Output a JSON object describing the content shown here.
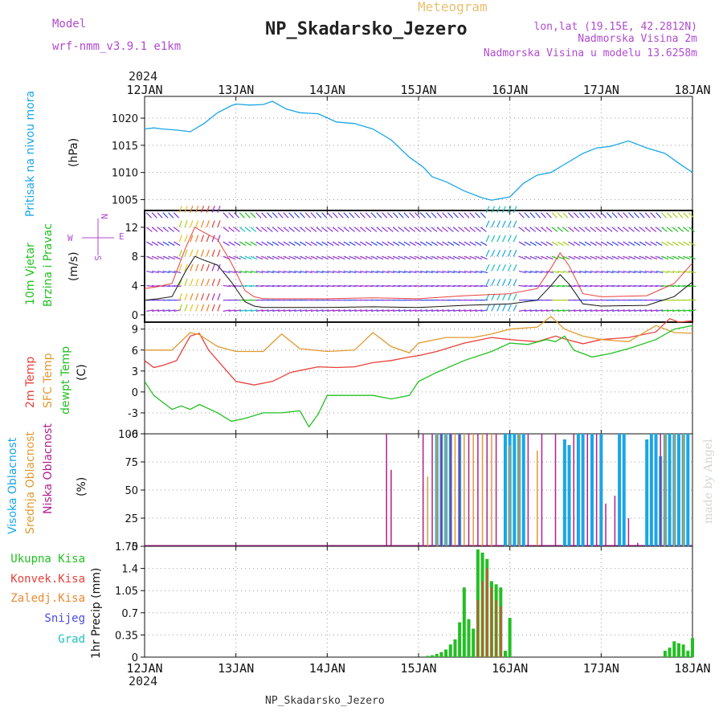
{
  "header": {
    "meteogram": "Meteogram",
    "station": "NP_Skadarsko_Jezero",
    "model_label": "Model",
    "model_value": "wrf-nmm_v3.9.1  e1km",
    "lonlat": "lon,lat (19.15E, 42.2812N)",
    "elevation": "Nadmorska Visina 2m",
    "model_elevation": "Nadmorska Visina u modelu 13.6258m",
    "footer_station": "NP_Skadarsko_Jezero",
    "credit": "made by Angel",
    "year_top": "2024",
    "year_bottom": "2024"
  },
  "colors": {
    "pressure": "#1aa6e6",
    "temp2m": "#e8403a",
    "sfc": "#e09a30",
    "dewpt": "#22c022",
    "high_cloud": "#1aa6e6",
    "mid_cloud": "#e09a30",
    "low_cloud": "#b0208f",
    "precip_total": "#22c022",
    "precip_conv": "#e8403a",
    "purple_label": "#b04ad0",
    "grid": "#999999"
  },
  "chart_data": [
    {
      "type": "line",
      "panel": "pressure",
      "ylabel": "(hPa)",
      "series_label": "Pritisak na nivou mora",
      "x_tick_labels": [
        "12JAN",
        "13JAN",
        "14JAN",
        "15JAN",
        "16JAN",
        "17JAN",
        "18JAN"
      ],
      "ylim": [
        1003,
        1024
      ],
      "yticks": [
        1005,
        1010,
        1015,
        1020
      ],
      "x_days": [
        0,
        0.1,
        0.2,
        0.35,
        0.5,
        0.65,
        0.8,
        0.95,
        1.0,
        1.15,
        1.3,
        1.4,
        1.55,
        1.7,
        1.9,
        2.1,
        2.3,
        2.5,
        2.7,
        2.9,
        3.05,
        3.15,
        3.3,
        3.5,
        3.7,
        3.8,
        4.0,
        4.15,
        4.3,
        4.45,
        4.6,
        4.8,
        4.95,
        5.1,
        5.3,
        5.5,
        5.7,
        5.85,
        6.0
      ],
      "values": [
        1018,
        1018.2,
        1018,
        1017.8,
        1017.5,
        1019,
        1021,
        1022.3,
        1022.6,
        1022.4,
        1022.5,
        1023.1,
        1021.7,
        1021.0,
        1020.8,
        1019.3,
        1019.0,
        1018.0,
        1016.0,
        1012.8,
        1011.0,
        1009.2,
        1008.3,
        1006.6,
        1005.3,
        1004.9,
        1005.5,
        1008.0,
        1009.5,
        1010.0,
        1011.5,
        1013.5,
        1014.5,
        1014.8,
        1015.8,
        1014.5,
        1013.5,
        1011.7,
        1010.0
      ]
    },
    {
      "type": "line",
      "panel": "wind",
      "ylabel": "(m/s)",
      "series_label": "10m Vjetar Brzina i Pravac",
      "compass": [
        "N",
        "E",
        "W",
        "S"
      ],
      "ylim": [
        -1,
        14.3
      ],
      "yticks": [
        0,
        4,
        8,
        12
      ],
      "x_days": [
        0,
        0.15,
        0.3,
        0.45,
        0.55,
        0.65,
        0.8,
        0.95,
        1.1,
        1.2,
        1.3,
        1.5,
        2.0,
        2.5,
        3.0,
        3.5,
        4.0,
        4.3,
        4.45,
        4.55,
        4.65,
        4.8,
        5.0,
        5.5,
        5.8,
        6.0
      ],
      "speed": [
        2,
        2.2,
        2.5,
        6,
        8,
        7.5,
        6.8,
        4.5,
        1.8,
        1.2,
        1.0,
        1.0,
        1.0,
        1.1,
        1.0,
        1.3,
        1.5,
        2.0,
        4.0,
        5.5,
        4.2,
        1.5,
        1.2,
        1.3,
        2.5,
        4.5
      ]
    },
    {
      "type": "line",
      "panel": "temperature",
      "ylabel": "(C)",
      "series": [
        {
          "name": "2m Temp",
          "key": "temp2m",
          "x": [
            0,
            0.1,
            0.2,
            0.35,
            0.5,
            0.6,
            0.7,
            0.9,
            1.0,
            1.2,
            1.4,
            1.6,
            1.9,
            2.1,
            2.3,
            2.5,
            2.7,
            2.9,
            3.0,
            3.2,
            3.5,
            3.8,
            4.0,
            4.3,
            4.5,
            4.6,
            4.8,
            5.0,
            5.3,
            5.6,
            5.75,
            5.85,
            6.0
          ],
          "values": [
            4.5,
            3.5,
            3.8,
            4.5,
            8.0,
            8.4,
            6.0,
            3.0,
            1.5,
            1.0,
            1.5,
            2.8,
            3.6,
            3.5,
            3.6,
            4.2,
            4.5,
            5.0,
            5.2,
            5.8,
            7.0,
            7.8,
            7.5,
            7.2,
            8.0,
            7.6,
            6.9,
            7.5,
            7.8,
            8.6,
            10.5,
            10.0,
            10.2
          ]
        },
        {
          "name": "SFC Temp",
          "key": "sfc",
          "x": [
            0,
            0.3,
            0.5,
            0.6,
            0.8,
            1.0,
            1.3,
            1.5,
            1.7,
            2.0,
            2.3,
            2.5,
            2.7,
            2.9,
            3.0,
            3.3,
            3.6,
            3.8,
            4.0,
            4.3,
            4.45,
            4.6,
            4.8,
            5.0,
            5.3,
            5.6,
            5.8,
            6.0
          ],
          "values": [
            6.0,
            6.0,
            8.5,
            8.2,
            6.5,
            5.8,
            5.8,
            8.3,
            6.2,
            5.8,
            6.0,
            8.5,
            6.5,
            5.6,
            7.0,
            7.8,
            7.8,
            8.3,
            9.0,
            9.3,
            10.8,
            9.0,
            8.0,
            7.5,
            7.2,
            9.5,
            8.5,
            8.4
          ]
        },
        {
          "name": "dewpt Temp",
          "key": "dewpt",
          "x": [
            0,
            0.1,
            0.2,
            0.3,
            0.4,
            0.5,
            0.6,
            0.8,
            0.95,
            1.1,
            1.3,
            1.5,
            1.7,
            1.8,
            1.9,
            2.0,
            2.2,
            2.5,
            2.7,
            2.9,
            3.0,
            3.2,
            3.5,
            3.8,
            4.0,
            4.2,
            4.4,
            4.5,
            4.6,
            4.7,
            4.9,
            5.1,
            5.3,
            5.6,
            5.8,
            6.0
          ],
          "values": [
            1.5,
            -0.5,
            -1.5,
            -2.5,
            -2.0,
            -2.5,
            -1.8,
            -3.0,
            -4.2,
            -3.8,
            -3.0,
            -3.0,
            -2.7,
            -5.0,
            -3.2,
            -0.5,
            -0.5,
            -0.5,
            -1.0,
            -0.5,
            1.5,
            2.8,
            4.5,
            5.8,
            7.0,
            6.8,
            7.5,
            7.2,
            8.0,
            6.0,
            5.0,
            5.5,
            6.2,
            7.5,
            9.0,
            9.5
          ]
        }
      ],
      "ylim": [
        -6,
        10
      ],
      "yticks": [
        -6,
        -3,
        0,
        3,
        6,
        9
      ]
    },
    {
      "type": "bar",
      "panel": "cloud",
      "ylabel": "(%)",
      "ylim": [
        0,
        100
      ],
      "yticks": [
        0,
        25,
        50,
        75,
        100
      ],
      "series": [
        {
          "name": "Visoka Oblacnost",
          "key": "high_cloud",
          "x": [
            3.2,
            3.25,
            3.3,
            3.35,
            3.45,
            3.95,
            4.0,
            4.05,
            4.1,
            4.15,
            4.6,
            4.65,
            4.75,
            4.8,
            4.9,
            5.0,
            5.2,
            5.25,
            5.5,
            5.55,
            5.6,
            5.65,
            5.7,
            5.75,
            5.8,
            5.85,
            5.9,
            5.95
          ],
          "values": [
            100,
            100,
            100,
            100,
            100,
            100,
            100,
            100,
            100,
            100,
            95,
            90,
            100,
            100,
            100,
            100,
            100,
            100,
            95,
            100,
            100,
            80,
            100,
            100,
            100,
            100,
            100,
            100
          ]
        },
        {
          "name": "Srednja Oblacnost",
          "key": "mid_cloud",
          "x": [
            3.1,
            3.2,
            3.3,
            3.4,
            3.5,
            3.6,
            3.7,
            3.8,
            4.0,
            4.1,
            4.3,
            5.7,
            5.8,
            5.9
          ],
          "values": [
            62,
            100,
            100,
            100,
            100,
            100,
            100,
            100,
            90,
            100,
            85,
            100,
            100,
            100
          ]
        },
        {
          "name": "Niska Oblacnost",
          "key": "low_cloud",
          "x": [
            2.65,
            2.7,
            3.05,
            3.15,
            3.25,
            3.35,
            3.45,
            3.55,
            3.65,
            3.75,
            3.85,
            4.2,
            4.35,
            4.5,
            4.7,
            4.85,
            4.95,
            5.05,
            5.15,
            5.3,
            5.4,
            5.65
          ],
          "values": [
            100,
            68,
            100,
            100,
            100,
            100,
            100,
            100,
            100,
            100,
            100,
            100,
            100,
            100,
            100,
            100,
            100,
            38,
            45,
            25,
            3,
            100
          ]
        }
      ]
    },
    {
      "type": "bar",
      "panel": "precipitation",
      "ylabel": "1hr Precip (mm)",
      "legend": [
        "Ukupna Kisa",
        "Konvek.Kisa",
        "Zaledj.Kisa",
        "Snijeg",
        "Grad"
      ],
      "ylim": [
        0,
        1.75
      ],
      "yticks": [
        0,
        0.35,
        0.7,
        1.05,
        1.4,
        1.75
      ],
      "series": [
        {
          "name": "Ukupna Kisa",
          "key": "precip_total",
          "x": [
            3.1,
            3.15,
            3.2,
            3.25,
            3.3,
            3.35,
            3.4,
            3.45,
            3.5,
            3.55,
            3.6,
            3.65,
            3.7,
            3.75,
            3.8,
            3.85,
            3.9,
            3.95,
            4.0,
            5.7,
            5.75,
            5.8,
            5.85,
            5.9,
            5.95,
            6.0
          ],
          "values": [
            0.02,
            0.03,
            0.05,
            0.08,
            0.12,
            0.2,
            0.28,
            0.55,
            1.1,
            0.6,
            0.45,
            1.7,
            1.65,
            1.55,
            1.2,
            1.15,
            1.1,
            0.1,
            0.62,
            0.1,
            0.15,
            0.25,
            0.22,
            0.2,
            0.1,
            0.3
          ]
        },
        {
          "name": "Konvek.Kisa",
          "key": "precip_conv",
          "x": [
            3.65,
            3.7,
            3.75,
            3.8,
            3.85,
            3.9
          ],
          "values": [
            0.9,
            1.2,
            1.4,
            1.1,
            0.9,
            0.8
          ]
        }
      ]
    }
  ]
}
